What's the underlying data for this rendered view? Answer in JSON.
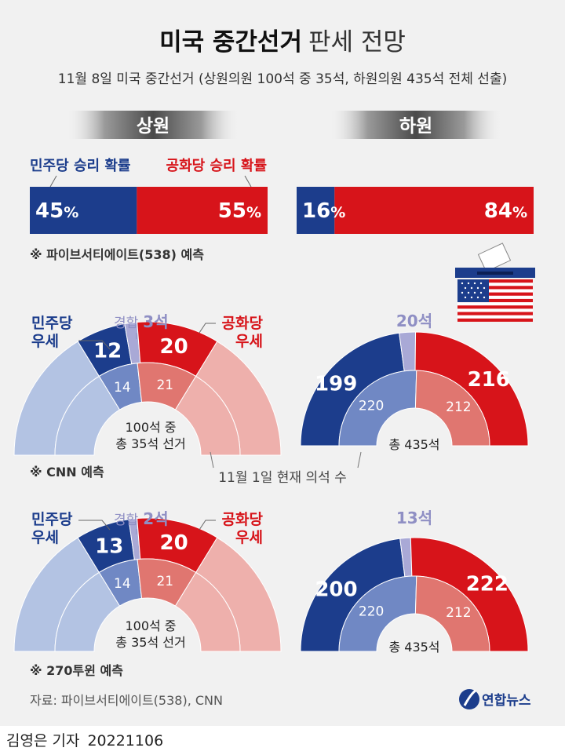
{
  "title": {
    "bold": "미국 중간선거",
    "light": "판세 전망"
  },
  "subtitle": "11월 8일 미국 중간선거 (상원의원 100석 중 35석, 하원의원 435석 전체 선출)",
  "senate": {
    "label": "상원"
  },
  "house": {
    "label": "하원"
  },
  "prob": {
    "dem_label": "민주당 승리 확률",
    "rep_label": "공화당 승리 확률",
    "source": "※ 파이브서티에이트(538) 예측"
  },
  "labels": {
    "dem_lean_1": "민주당",
    "dem_lean_2": "우세",
    "rep_lean_1": "공화당",
    "rep_lean_2": "우세",
    "tossup": "경합"
  },
  "cnn": {
    "source": "※ CNN 예측",
    "senate": {
      "tossup_label": "3석",
      "center_1": "100석 중",
      "center_2": "총 35석 선거"
    },
    "house": {
      "tossup_label": "20석",
      "center_1": "총 435석"
    }
  },
  "t270": {
    "source": "※ 270투윈 예측",
    "senate": {
      "tossup_label": "2석",
      "center_1": "100석 중",
      "center_2": "총 35석 선거"
    },
    "house": {
      "tossup_label": "13석",
      "center_1": "총 435석"
    }
  },
  "current_note": "11월 1일 현재 의석 수",
  "footer": {
    "source": "자료: 파이브서티에이트(538), CNN",
    "logo": "연합뉴스",
    "reporter": "김영은 기자",
    "date": "20221106"
  },
  "colors": {
    "dem": "#1c3d8c",
    "dem_light": "#b3c3e3",
    "dem_mid": "#7088c4",
    "rep": "#d7141a",
    "rep_light": "#eeb0ac",
    "rep_mid": "#e07670",
    "tossup": "#a9a9d6"
  },
  "chart_data": [
    {
      "type": "bar",
      "title": "상원",
      "categories": [
        "민주당 승리 확률",
        "공화당 승리 확률"
      ],
      "values": [
        45,
        55
      ],
      "unit": "%",
      "source": "파이브서티에이트(538)"
    },
    {
      "type": "bar",
      "title": "하원",
      "categories": [
        "민주당 승리 확률",
        "공화당 승리 확률"
      ],
      "values": [
        16,
        84
      ],
      "unit": "%",
      "source": "파이브서티에이트(538)"
    },
    {
      "type": "pie",
      "title": "상원",
      "source": "CNN",
      "total": 100,
      "up_for_election": 35,
      "forecast": {
        "dem": 12,
        "tossup": 3,
        "rep": 20
      },
      "current": {
        "dem": 14,
        "rep": 21
      }
    },
    {
      "type": "pie",
      "title": "하원",
      "source": "CNN",
      "total": 435,
      "forecast": {
        "dem": 199,
        "tossup": 20,
        "rep": 216
      },
      "current": {
        "dem": 220,
        "rep": 212
      }
    },
    {
      "type": "pie",
      "title": "상원",
      "source": "270투윈",
      "total": 100,
      "up_for_election": 35,
      "forecast": {
        "dem": 13,
        "tossup": 2,
        "rep": 20
      },
      "current": {
        "dem": 14,
        "rep": 21
      }
    },
    {
      "type": "pie",
      "title": "하원",
      "source": "270투윈",
      "total": 435,
      "forecast": {
        "dem": 200,
        "tossup": 13,
        "rep": 222
      },
      "current": {
        "dem": 220,
        "rep": 212
      }
    }
  ]
}
